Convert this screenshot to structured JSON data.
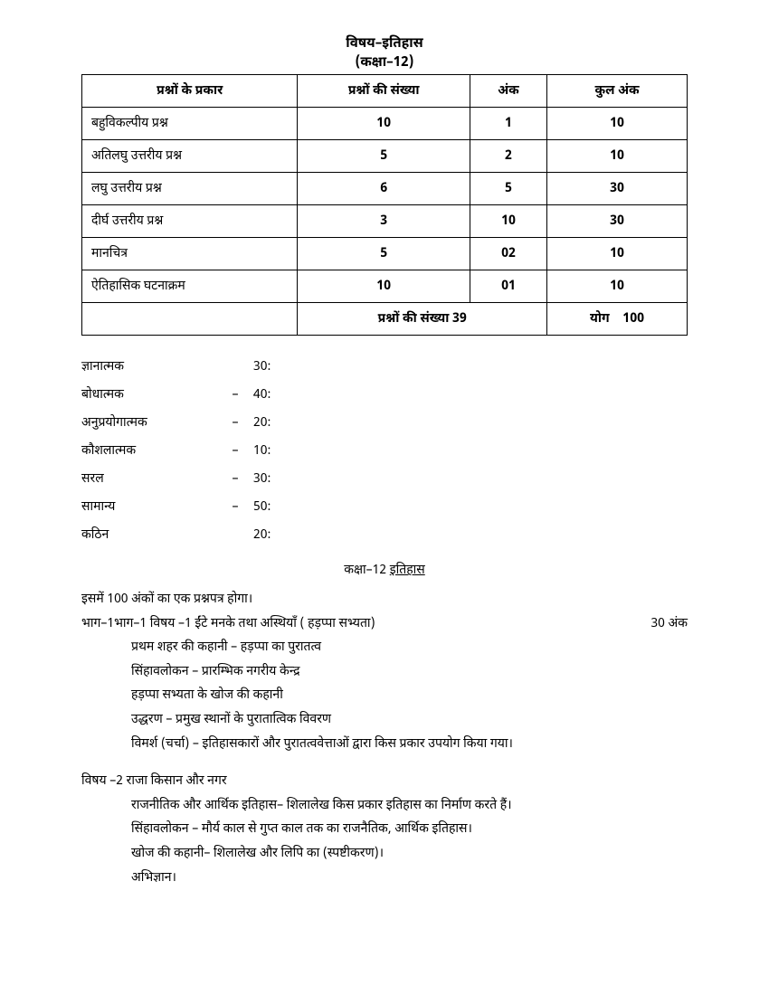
{
  "header": {
    "title1": "विषय–इतिहास",
    "title2": "(कक्षा–12)"
  },
  "table": {
    "columns": [
      "प्रश्नों के प्रकार",
      "प्रश्नों की संख्या",
      "अंक",
      "कुल अंक"
    ],
    "rows": [
      [
        "बहुविकल्पीय प्रश्न",
        "10",
        "1",
        "10"
      ],
      [
        "अतिलघु उत्तरीय प्रश्न",
        "5",
        "2",
        "10"
      ],
      [
        "लघु उत्तरीय प्रश्न",
        "6",
        "5",
        "30"
      ],
      [
        "दीर्घ उत्तरीय प्रश्न",
        "3",
        "10",
        "30"
      ],
      [
        "मानचित्र",
        "5",
        "02",
        "10"
      ],
      [
        "ऐतिहासिक घटनाक्रम",
        "10",
        "01",
        "10"
      ]
    ],
    "footer": {
      "merged_label": "प्रश्नों की संख्या  39",
      "total_label": "योग",
      "total_value": "100"
    }
  },
  "weights": [
    {
      "label": "ज्ञानात्मक",
      "dash": "",
      "value": "30:"
    },
    {
      "label": "बोधात्मक",
      "dash": "–",
      "value": "40:"
    },
    {
      "label": "अनुप्रयोगात्मक",
      "dash": "–",
      "value": "20:"
    },
    {
      "label": "कौशलात्मक",
      "dash": "–",
      "value": "10:"
    },
    {
      "label": "सरल",
      "dash": "–",
      "value": "30:"
    },
    {
      "label": "सामान्य",
      "dash": "–",
      "value": "50:"
    },
    {
      "label": "कठिन",
      "dash": "",
      "value": "20:"
    }
  ],
  "section": {
    "prefix": "कक्षा–12 ",
    "underlined": "इतिहास"
  },
  "content": {
    "intro": "इसमें 100 अंकों का एक प्रश्नपत्र होगा।",
    "topic1": {
      "header": "भाग–1भाग–1 विषय –1 ईंटे मनके तथा अस्थियाँ ( हड़प्पा सभ्यता)",
      "marks": "30 अंक",
      "lines": [
        "प्रथम शहर की कहानी – हड़प्पा का पुरातत्व",
        "सिंहावलोकन – प्रारम्भिक नगरीय केन्द्र",
        "हड़प्पा सभ्यता के खोज की कहानी",
        "उद्धरण – प्रमुख स्थानों के पुरातात्विक विवरण",
        "विमर्श (चर्चा) – इतिहासकारों और पुरातत्ववेत्ताओं द्वारा किस प्रकार उपयोग किया गया।"
      ]
    },
    "topic2": {
      "header": "विषय –2 राजा किसान और नगर",
      "lines": [
        "राजनीतिक और आर्थिक इतिहास– शिलालेख किस प्रकार इतिहास का निर्माण करते हैं।",
        "सिंहावलोकन – मौर्य काल से गुप्त काल तक का राजनैतिक, आर्थिक इतिहास।",
        "खोज की कहानी– शिलालेख और लिपि का (स्पष्टीकरण)।",
        "अभिज्ञान।"
      ]
    }
  }
}
